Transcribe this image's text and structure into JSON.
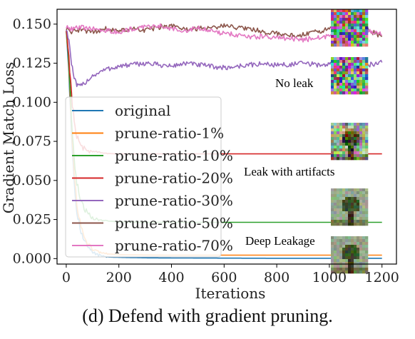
{
  "caption": "(d) Defend with gradient pruning.",
  "chart_data": {
    "type": "line",
    "xlabel": "Iterations",
    "ylabel": "Gradient Match Loss",
    "xlim": [
      -35,
      1255
    ],
    "ylim": [
      -0.0035,
      0.1595
    ],
    "xticks": [
      0,
      200,
      400,
      600,
      800,
      1000,
      1200
    ],
    "yticks": [
      0.0,
      0.025,
      0.05,
      0.075,
      0.1,
      0.125,
      0.15
    ],
    "xtick_labels": [
      "0",
      "200",
      "400",
      "600",
      "800",
      "1000",
      "1200"
    ],
    "ytick_labels": [
      "0.000",
      "0.025",
      "0.050",
      "0.075",
      "0.100",
      "0.125",
      "0.150"
    ],
    "grid": false,
    "legend_position": "left",
    "series": [
      {
        "name": "original",
        "color": "#1f77b4",
        "x": [
          0,
          10,
          20,
          30,
          40,
          60,
          80,
          100,
          130,
          160,
          200,
          300,
          400,
          600,
          800,
          1000,
          1200
        ],
        "y": [
          0.147,
          0.12,
          0.08,
          0.05,
          0.03,
          0.015,
          0.008,
          0.004,
          0.002,
          0.001,
          0.0008,
          0.0005,
          0.0004,
          0.0003,
          0.0002,
          0.0002,
          0.0002
        ]
      },
      {
        "name": "prune-ratio-1%",
        "color": "#ff7f0e",
        "x": [
          0,
          10,
          20,
          30,
          40,
          60,
          80,
          100,
          130,
          160,
          200,
          300,
          400,
          600,
          800,
          1000,
          1200
        ],
        "y": [
          0.147,
          0.122,
          0.085,
          0.055,
          0.035,
          0.018,
          0.01,
          0.006,
          0.004,
          0.003,
          0.0025,
          0.0023,
          0.0022,
          0.0022,
          0.0022,
          0.0022,
          0.0022
        ]
      },
      {
        "name": "prune-ratio-10%",
        "color": "#2ca02c",
        "x": [
          0,
          10,
          20,
          30,
          40,
          60,
          80,
          100,
          130,
          160,
          200,
          300,
          400,
          600,
          800,
          1000,
          1200
        ],
        "y": [
          0.147,
          0.125,
          0.09,
          0.065,
          0.048,
          0.035,
          0.029,
          0.026,
          0.0245,
          0.024,
          0.0235,
          0.0232,
          0.0232,
          0.0232,
          0.0232,
          0.0232,
          0.0232
        ]
      },
      {
        "name": "prune-ratio-20%",
        "color": "#d62728",
        "x": [
          0,
          10,
          20,
          30,
          40,
          60,
          80,
          100,
          130,
          160,
          200,
          300,
          400,
          600,
          800,
          1000,
          1200
        ],
        "y": [
          0.147,
          0.13,
          0.105,
          0.088,
          0.078,
          0.071,
          0.069,
          0.068,
          0.0675,
          0.0672,
          0.067,
          0.067,
          0.067,
          0.067,
          0.067,
          0.067,
          0.067
        ]
      },
      {
        "name": "prune-ratio-30%",
        "color": "#9467bd",
        "x": [
          0,
          10,
          20,
          30,
          40,
          50,
          60,
          80,
          100,
          150,
          200,
          250,
          300,
          350,
          400,
          450,
          500,
          550,
          600,
          650,
          700,
          750,
          800,
          850,
          900,
          950,
          1000,
          1050,
          1100,
          1150,
          1200
        ],
        "y": [
          0.147,
          0.14,
          0.125,
          0.115,
          0.111,
          0.11,
          0.111,
          0.114,
          0.117,
          0.121,
          0.123,
          0.124,
          0.125,
          0.124,
          0.123,
          0.125,
          0.124,
          0.123,
          0.122,
          0.123,
          0.124,
          0.1245,
          0.124,
          0.124,
          0.125,
          0.124,
          0.124,
          0.1245,
          0.1245,
          0.124,
          0.1255
        ]
      },
      {
        "name": "prune-ratio-50%",
        "color": "#8c564b",
        "x": [
          0,
          20,
          50,
          100,
          150,
          200,
          250,
          300,
          350,
          400,
          450,
          500,
          550,
          600,
          650,
          700,
          750,
          800,
          850,
          900,
          950,
          1000,
          1050,
          1100,
          1150,
          1200
        ],
        "y": [
          0.147,
          0.145,
          0.146,
          0.145,
          0.147,
          0.146,
          0.147,
          0.146,
          0.148,
          0.149,
          0.147,
          0.147,
          0.148,
          0.149,
          0.148,
          0.147,
          0.145,
          0.144,
          0.143,
          0.143,
          0.145,
          0.147,
          0.149,
          0.148,
          0.146,
          0.142
        ]
      },
      {
        "name": "prune-ratio-70%",
        "color": "#e377c2",
        "x": [
          0,
          20,
          50,
          100,
          150,
          200,
          250,
          300,
          350,
          400,
          450,
          500,
          550,
          600,
          650,
          700,
          750,
          800,
          850,
          900,
          950,
          1000,
          1050,
          1100,
          1150,
          1200
        ],
        "y": [
          0.148,
          0.147,
          0.148,
          0.147,
          0.146,
          0.145,
          0.147,
          0.148,
          0.149,
          0.147,
          0.146,
          0.148,
          0.146,
          0.144,
          0.143,
          0.142,
          0.142,
          0.141,
          0.141,
          0.14,
          0.141,
          0.142,
          0.144,
          0.147,
          0.146,
          0.143
        ]
      }
    ],
    "annotations": [
      "No leak",
      "Leak with artifacts",
      "Deep Leakage"
    ],
    "thumbnails": [
      {
        "kind": "noise",
        "seed": 11
      },
      {
        "kind": "noise",
        "seed": 29
      },
      {
        "kind": "noisy-tree",
        "seed": 5
      },
      {
        "kind": "tree",
        "seed": 7
      },
      {
        "kind": "tree",
        "seed": 13
      }
    ]
  }
}
